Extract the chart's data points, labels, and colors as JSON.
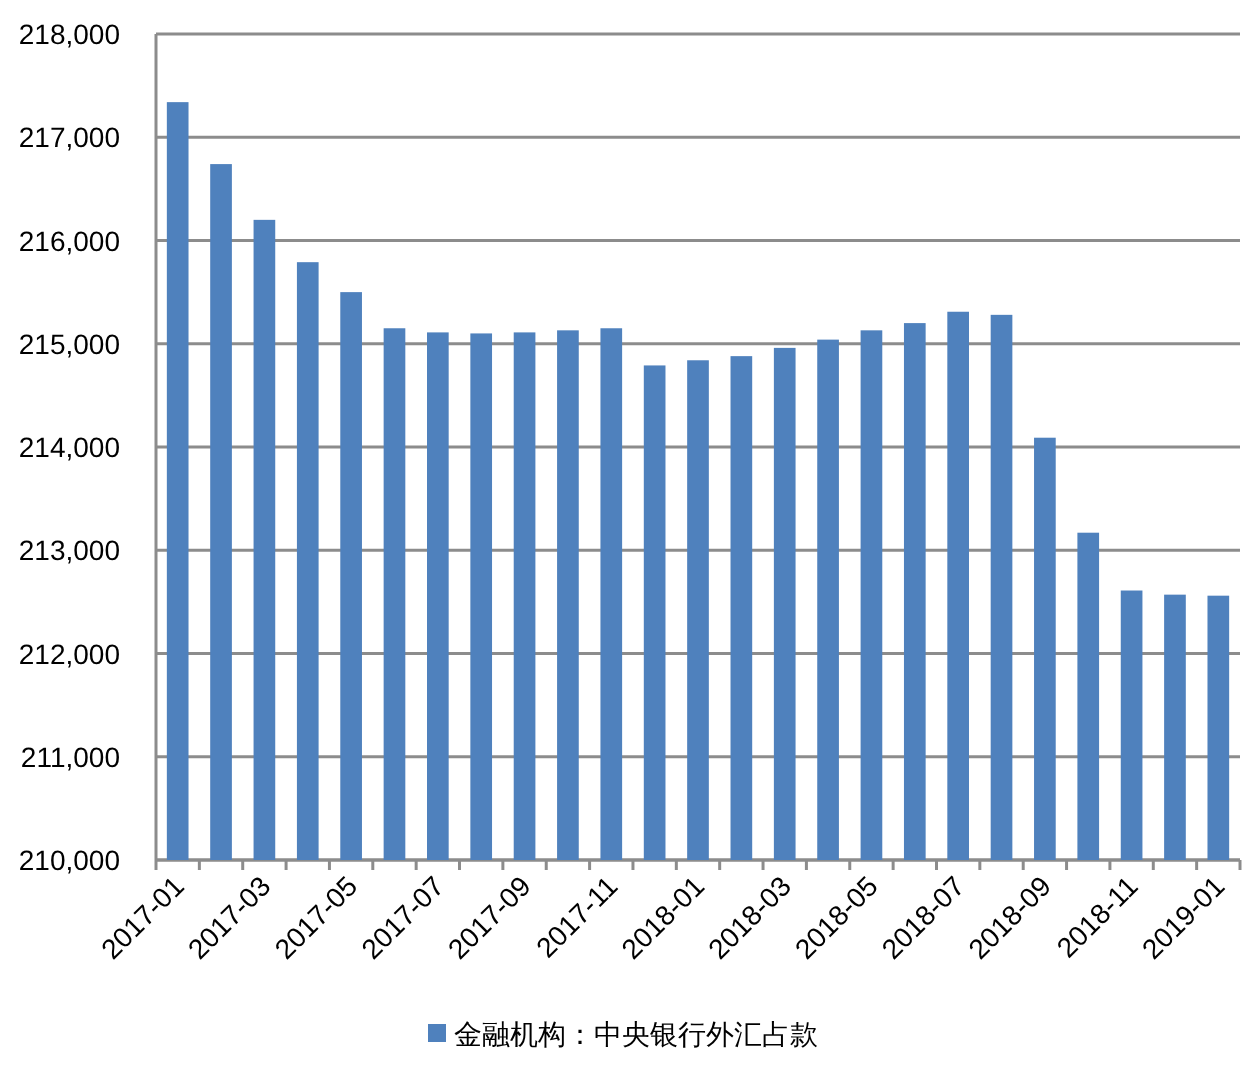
{
  "chart_data": {
    "type": "bar",
    "categories": [
      "2017-01",
      null,
      "2017-03",
      null,
      "2017-05",
      null,
      "2017-07",
      null,
      "2017-09",
      null,
      "2017-11",
      null,
      "2018-01",
      null,
      "2018-03",
      null,
      "2018-05",
      null,
      "2018-07",
      null,
      "2018-09",
      null,
      "2018-11",
      null,
      "2019-01"
    ],
    "series": [
      {
        "name": "金融机构：中央银行外汇占款",
        "color": "#4f81bd",
        "values": [
          217340,
          216740,
          216200,
          215790,
          215500,
          215150,
          215110,
          215100,
          215110,
          215130,
          215150,
          214790,
          214840,
          214880,
          214960,
          215040,
          215130,
          215200,
          215310,
          215280,
          214090,
          213170,
          212610,
          212570,
          212560
        ]
      }
    ],
    "ylim": [
      210000,
      218000
    ],
    "yticks": [
      {
        "value": 210000,
        "label": "210,000"
      },
      {
        "value": 211000,
        "label": "211,000"
      },
      {
        "value": 212000,
        "label": "212,000"
      },
      {
        "value": 213000,
        "label": "213,000"
      },
      {
        "value": 214000,
        "label": "214,000"
      },
      {
        "value": 215000,
        "label": "215,000"
      },
      {
        "value": 216000,
        "label": "216,000"
      },
      {
        "value": 217000,
        "label": "217,000"
      },
      {
        "value": 218000,
        "label": "218,000"
      }
    ],
    "grid": "y",
    "legend": "bottom"
  }
}
